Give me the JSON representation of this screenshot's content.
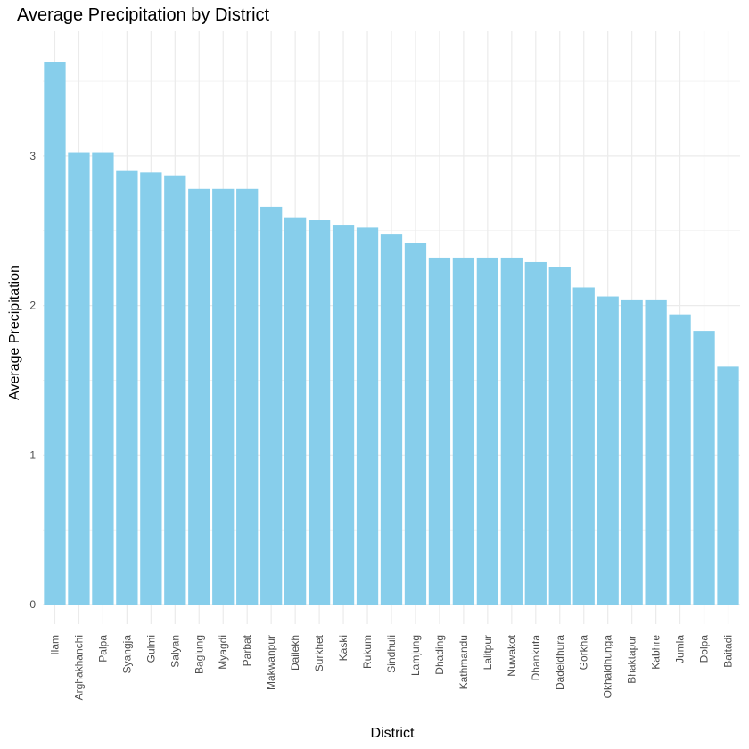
{
  "chart_data": {
    "type": "bar",
    "title": "Average Precipitation by District",
    "xlabel": "District",
    "ylabel": "Average Precipitation",
    "categories": [
      "Ilam",
      "Arghakhanchi",
      "Palpa",
      "Syangja",
      "Gulmi",
      "Salyan",
      "Baglung",
      "Myagdi",
      "Parbat",
      "Makwanpur",
      "Dailekh",
      "Surkhet",
      "Kaski",
      "Rukum",
      "Sindhuli",
      "Lamjung",
      "Dhading",
      "Kathmandu",
      "Lalitpur",
      "Nuwakot",
      "Dhankuta",
      "Dadeldhura",
      "Gorkha",
      "Okhaldhunga",
      "Bhaktapur",
      "Kabhre",
      "Jumla",
      "Dolpa",
      "Baitadi"
    ],
    "values": [
      3.63,
      3.02,
      3.02,
      2.9,
      2.89,
      2.87,
      2.78,
      2.78,
      2.78,
      2.66,
      2.59,
      2.57,
      2.54,
      2.52,
      2.48,
      2.42,
      2.32,
      2.32,
      2.32,
      2.32,
      2.29,
      2.26,
      2.12,
      2.06,
      2.04,
      2.04,
      1.94,
      1.83,
      1.59
    ],
    "yticks": [
      0,
      1,
      2,
      3
    ],
    "ylim": [
      -0.18,
      3.8
    ],
    "grid": true,
    "legend": "none",
    "bar_color": "#87CEEB",
    "grid_color": "#ebebeb"
  }
}
